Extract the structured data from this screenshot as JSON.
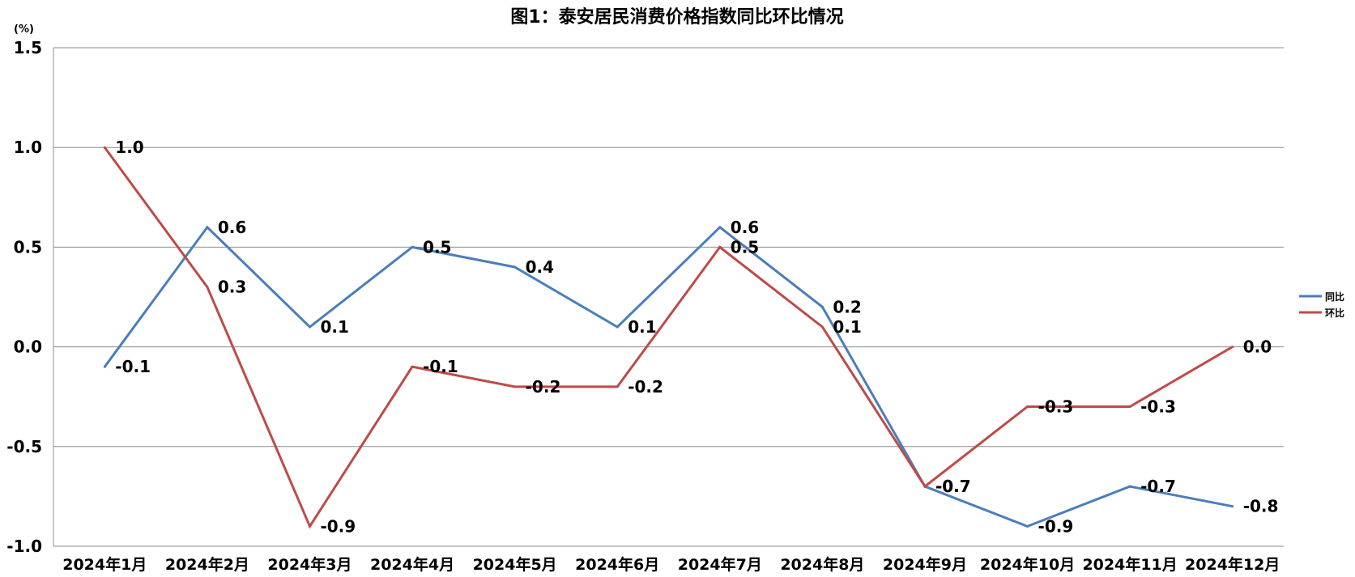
{
  "chart_data": {
    "type": "line",
    "title": "图1：泰安居民消费价格指数同比环比情况",
    "yunit": "(%)",
    "ylim": [
      -1.0,
      1.5
    ],
    "yticks": [
      -1.0,
      -0.5,
      0.0,
      0.5,
      1.0,
      1.5
    ],
    "ytick_labels": [
      "-1.0",
      "-0.5",
      "0.0",
      "0.5",
      "1.0",
      "1.5"
    ],
    "grid": true,
    "legend_position": "right",
    "categories": [
      "2024年1月",
      "2024年2月",
      "2024年3月",
      "2024年4月",
      "2024年5月",
      "2024年6月",
      "2024年7月",
      "2024年8月",
      "2024年9月",
      "2024年10月",
      "2024年11月",
      "2024年12月"
    ],
    "series": [
      {
        "name": "同比",
        "color": "#4a7ebb",
        "values": [
          -0.1,
          0.6,
          0.1,
          0.5,
          0.4,
          0.1,
          0.6,
          0.2,
          -0.7,
          -0.9,
          -0.7,
          -0.8
        ],
        "labels": [
          "-0.1",
          "0.6",
          "0.1",
          "0.5",
          "0.4",
          "0.1",
          "0.6",
          "0.2",
          "-0.7",
          "-0.9",
          "-0.7",
          "-0.8"
        ]
      },
      {
        "name": "环比",
        "color": "#be4b48",
        "values": [
          1.0,
          0.3,
          -0.9,
          -0.1,
          -0.2,
          -0.2,
          0.5,
          0.1,
          -0.7,
          -0.3,
          -0.3,
          0.0
        ],
        "labels": [
          "1.0",
          "0.3",
          "-0.9",
          "-0.1",
          "-0.2",
          "-0.2",
          "0.5",
          "0.1",
          "-0.7",
          "-0.3",
          "-0.3",
          "0.0"
        ]
      }
    ]
  }
}
